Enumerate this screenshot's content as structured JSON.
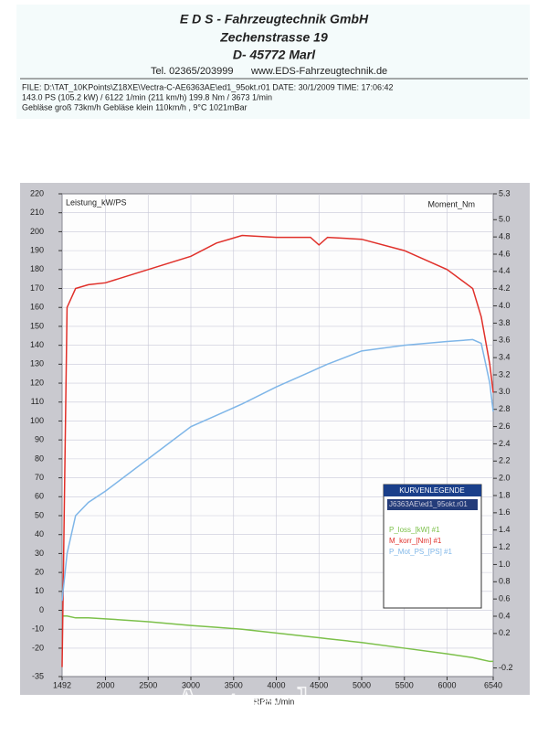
{
  "header": {
    "company": "E D S - Fahrzeugtechnik GmbH",
    "street": "Zechenstrasse 19",
    "city": "D- 45772 Marl",
    "phone": "Tel. 02365/203999",
    "web": "www.EDS-Fahrzeugtechnik.de",
    "info": [
      "FILE: D:\\TAT_10KPoints\\Z18XE\\Vectra-C-AE6363AE\\ed1_95okt.r01  DATE: 30/1/2009  TIME: 17:06:42",
      "143.0 PS  (105.2 kW) / 6122 1/min (211 km/h)    199.8 Nm / 3673 1/min",
      "Gebläse groß 73km/h Gebläse klein 110km/h    , 9°C 1021mBar"
    ]
  },
  "watermark": "Astra-h.ru",
  "chart_data": {
    "type": "line",
    "ylabel": "Leistung_kW/PS",
    "y2label": "Moment_Nm",
    "xlabel": "RPM 1/min",
    "legend_title": "KURVENLEGENDE",
    "legend_file": "J6363AE\\ed1_95okt.r01",
    "x": [
      1492,
      1550,
      1650,
      1800,
      2000,
      2500,
      3000,
      3300,
      3600,
      4000,
      4400,
      4500,
      4600,
      5000,
      5500,
      6000,
      6300,
      6400,
      6500,
      6540
    ],
    "series": [
      {
        "name": "P_loss_[kW] #1",
        "color": "#7cc04a",
        "values": [
          -3,
          -3,
          -4,
          -4,
          -4.5,
          -6,
          -8,
          -9,
          -10,
          -12,
          -14,
          -14.5,
          -15,
          -17,
          -20,
          -23,
          -25,
          -26,
          -27,
          -27
        ]
      },
      {
        "name": "M_korr_[Nm] #1",
        "color": "#e0302a",
        "values": [
          -30,
          160,
          170,
          172,
          173,
          180,
          187,
          194,
          198,
          197,
          197,
          193,
          197,
          196,
          190,
          180,
          170,
          155,
          130,
          115
        ]
      },
      {
        "name": "P_Mot_PS_[PS] #1",
        "color": "#7fb6e8",
        "values": [
          5,
          30,
          50,
          57,
          63,
          80,
          97,
          103,
          109,
          118,
          126,
          128,
          130,
          137,
          140,
          142,
          143,
          141,
          120,
          105
        ]
      }
    ],
    "xlim": [
      1492,
      6540
    ],
    "xticks": [
      1492,
      2000,
      2500,
      3000,
      3500,
      4000,
      4500,
      5000,
      5500,
      6000,
      6540
    ],
    "ylim": [
      -35,
      220
    ],
    "yticks": [
      220,
      210,
      200,
      190,
      180,
      170,
      160,
      150,
      140,
      130,
      120,
      110,
      100,
      90,
      80,
      70,
      60,
      50,
      40,
      30,
      20,
      10,
      0,
      -10,
      -20,
      -35
    ],
    "y2lim": [
      -0.3,
      5.3
    ],
    "y2ticks": [
      5.3,
      {
        "value": 5,
        "label": "5.0"
      },
      4.8,
      4.6,
      4.4,
      4.2,
      {
        "value": 4,
        "label": "4.0"
      },
      3.8,
      3.6,
      3.4,
      3.2,
      {
        "value": 3,
        "label": "3.0"
      },
      2.8,
      2.6,
      2.4,
      2.2,
      {
        "value": 2,
        "label": "2.0"
      },
      1.8,
      1.6,
      1.4,
      1.2,
      {
        "value": 1,
        "label": "1.0"
      },
      0.8,
      0.6,
      0.4,
      0.2,
      -0.2
    ],
    "grid": true
  }
}
